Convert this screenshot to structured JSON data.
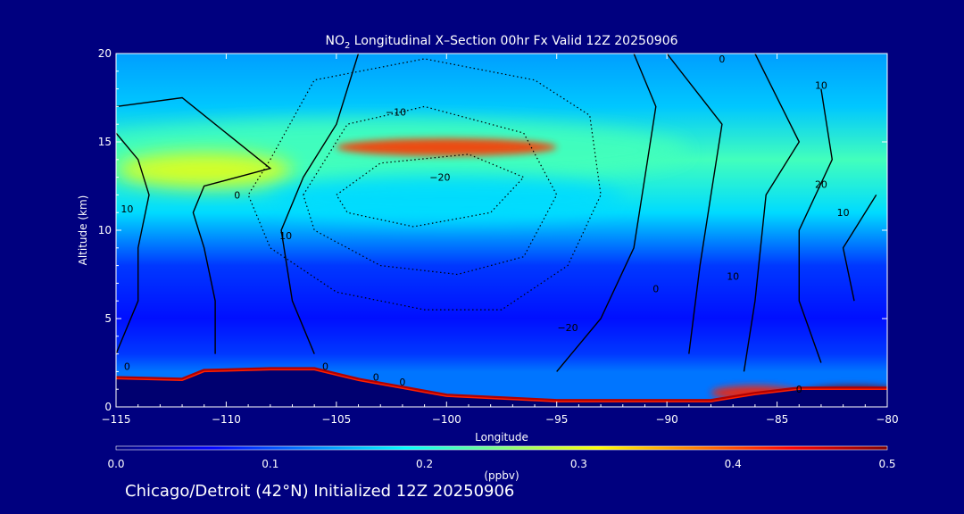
{
  "chart_data": {
    "type": "heatmap",
    "title_species": "NO",
    "title_subscript": "2",
    "title_rest": " Longitudinal X–Section 00hr  Fx Valid 12Z 20250906",
    "xlabel": "Longitude",
    "ylabel": "Altitude (km)",
    "xlim": [
      -115,
      -80
    ],
    "ylim": [
      0,
      20
    ],
    "x_ticks": [
      -115,
      -110,
      -105,
      -100,
      -95,
      -90,
      -85,
      -80
    ],
    "x_tick_labels": [
      "−115",
      "−110",
      "−105",
      "−100",
      "−95",
      "−90",
      "−85",
      "−80"
    ],
    "y_ticks": [
      0,
      5,
      10,
      15,
      20
    ],
    "y_tick_labels": [
      "0",
      "5",
      "10",
      "15",
      "20"
    ],
    "colorbar": {
      "min": 0.0,
      "max": 0.5,
      "unit_label": "(ppbv)",
      "ticks": [
        0.0,
        0.1,
        0.2,
        0.3,
        0.4,
        0.5
      ],
      "tick_labels": [
        "0.0",
        "0.1",
        "0.2",
        "0.3",
        "0.4",
        "0.5"
      ],
      "colors": [
        "#00007f",
        "#0000ff",
        "#007fff",
        "#00ffff",
        "#7fff7f",
        "#ffff00",
        "#ff7f00",
        "#ff0000",
        "#7f0000"
      ]
    },
    "background_field": [
      {
        "altitude": 20,
        "value": 0.14
      },
      {
        "altitude": 17,
        "value": 0.16
      },
      {
        "altitude": 14,
        "value": 0.22
      },
      {
        "altitude": 11,
        "value": 0.17
      },
      {
        "altitude": 8,
        "value": 0.09
      },
      {
        "altitude": 5,
        "value": 0.07
      },
      {
        "altitude": 3,
        "value": 0.09
      },
      {
        "altitude": 2,
        "value": 0.12
      }
    ],
    "features": [
      {
        "name": "upper-band",
        "center": [
          -103,
          14.5
        ],
        "spread": [
          14,
          1.8
        ],
        "value": 0.22
      },
      {
        "name": "west-max",
        "center": [
          -111,
          13.4
        ],
        "spread": [
          4,
          1.0
        ],
        "value": 0.3
      },
      {
        "name": "core-max",
        "center": [
          -100,
          14.7
        ],
        "spread": [
          5,
          0.5
        ],
        "value": 0.41
      },
      {
        "name": "mid-band",
        "center": [
          -100,
          11.8
        ],
        "spread": [
          8,
          1.3
        ],
        "value": 0.17
      },
      {
        "name": "east-surface-max",
        "center": [
          -81.5,
          0.7
        ],
        "spread": [
          2.5,
          0.5
        ],
        "value": 0.5
      },
      {
        "name": "east-surface-2",
        "center": [
          -86,
          0.8
        ],
        "spread": [
          2,
          0.4
        ],
        "value": 0.42
      }
    ],
    "terrain": [
      {
        "lon": -115,
        "alt": 1.6
      },
      {
        "lon": -112,
        "alt": 1.5
      },
      {
        "lon": -111,
        "alt": 2.0
      },
      {
        "lon": -108,
        "alt": 2.1
      },
      {
        "lon": -106,
        "alt": 2.1
      },
      {
        "lon": -104,
        "alt": 1.5
      },
      {
        "lon": -100,
        "alt": 0.6
      },
      {
        "lon": -95,
        "alt": 0.3
      },
      {
        "lon": -88,
        "alt": 0.3
      },
      {
        "lon": -86,
        "alt": 0.7
      },
      {
        "lon": -84,
        "alt": 1.0
      },
      {
        "lon": -82,
        "alt": 1.0
      },
      {
        "lon": -80,
        "alt": 1.0
      }
    ],
    "contours": [
      {
        "style": "solid",
        "points": [
          [
            -115,
            17
          ],
          [
            -112,
            17.5
          ],
          [
            -108,
            13.5
          ],
          [
            -111,
            12.5
          ],
          [
            -111.5,
            11
          ],
          [
            -111,
            9
          ],
          [
            -110.5,
            6
          ],
          [
            -110.5,
            3
          ]
        ]
      },
      {
        "style": "solid",
        "points": [
          [
            -115,
            15.5
          ],
          [
            -114,
            14
          ],
          [
            -113.5,
            12
          ],
          [
            -114,
            9
          ],
          [
            -114,
            6
          ],
          [
            -115,
            3
          ]
        ]
      },
      {
        "style": "solid",
        "points": [
          [
            -106,
            3
          ],
          [
            -107,
            6
          ],
          [
            -107.5,
            10
          ],
          [
            -106.5,
            13
          ],
          [
            -105,
            16
          ],
          [
            -104,
            20
          ]
        ]
      },
      {
        "style": "solid",
        "points": [
          [
            -95,
            2
          ],
          [
            -93,
            5
          ],
          [
            -91.5,
            9
          ],
          [
            -91,
            13
          ],
          [
            -90.5,
            17
          ],
          [
            -91.5,
            20
          ]
        ]
      },
      {
        "style": "solid",
        "points": [
          [
            -90,
            20
          ],
          [
            -87.5,
            16
          ],
          [
            -88,
            12
          ],
          [
            -88.5,
            8
          ],
          [
            -89,
            3
          ]
        ]
      },
      {
        "style": "solid",
        "points": [
          [
            -86,
            20
          ],
          [
            -84,
            15
          ],
          [
            -85.5,
            12
          ],
          [
            -86,
            6
          ],
          [
            -86.5,
            2
          ]
        ]
      },
      {
        "style": "solid",
        "points": [
          [
            -83,
            18
          ],
          [
            -82.5,
            14
          ],
          [
            -84,
            10
          ],
          [
            -84,
            6
          ],
          [
            -83,
            2.5
          ]
        ]
      },
      {
        "style": "solid",
        "points": [
          [
            -80.5,
            12
          ],
          [
            -82,
            9
          ],
          [
            -81.5,
            6
          ]
        ]
      },
      {
        "style": "dotted",
        "points": [
          [
            -108,
            14
          ],
          [
            -106,
            18.5
          ],
          [
            -101,
            19.7
          ],
          [
            -96,
            18.5
          ],
          [
            -93.5,
            16.5
          ],
          [
            -93,
            12
          ],
          [
            -94.5,
            8
          ],
          [
            -97.5,
            5.5
          ],
          [
            -101,
            5.5
          ],
          [
            -105,
            6.5
          ],
          [
            -108,
            9
          ],
          [
            -109,
            12
          ],
          [
            -108,
            14
          ]
        ]
      },
      {
        "style": "dotted",
        "points": [
          [
            -106.5,
            12
          ],
          [
            -104.5,
            16
          ],
          [
            -101,
            17
          ],
          [
            -96.5,
            15.5
          ],
          [
            -95,
            12
          ],
          [
            -96.5,
            8.5
          ],
          [
            -99.5,
            7.5
          ],
          [
            -103,
            8
          ],
          [
            -106,
            10
          ],
          [
            -106.5,
            12
          ]
        ]
      },
      {
        "style": "dotted",
        "points": [
          [
            -105,
            12
          ],
          [
            -103,
            13.8
          ],
          [
            -99,
            14.3
          ],
          [
            -96.5,
            13
          ],
          [
            -98,
            11
          ],
          [
            -101.5,
            10.2
          ],
          [
            -104.5,
            11
          ],
          [
            -105,
            12
          ]
        ]
      }
    ],
    "contour_labels": [
      {
        "text": "0",
        "lon": -109.5,
        "alt": 11.8
      },
      {
        "text": "10",
        "lon": -114.5,
        "alt": 11.0
      },
      {
        "text": "0",
        "lon": -114.5,
        "alt": 2.1
      },
      {
        "text": "10",
        "lon": -107.3,
        "alt": 9.5
      },
      {
        "text": "0",
        "lon": -105.5,
        "alt": 2.1
      },
      {
        "text": "0",
        "lon": -103.2,
        "alt": 1.5
      },
      {
        "text": "0",
        "lon": -102,
        "alt": 1.2
      },
      {
        "text": "−10",
        "lon": -102.3,
        "alt": 16.5
      },
      {
        "text": "−20",
        "lon": -100.3,
        "alt": 12.8
      },
      {
        "text": "−20",
        "lon": -94.5,
        "alt": 4.3
      },
      {
        "text": "0",
        "lon": -90.5,
        "alt": 6.5
      },
      {
        "text": "0",
        "lon": -87.5,
        "alt": 19.5
      },
      {
        "text": "10",
        "lon": -83,
        "alt": 18
      },
      {
        "text": "20",
        "lon": -83,
        "alt": 12.4
      },
      {
        "text": "10",
        "lon": -82,
        "alt": 10.8
      },
      {
        "text": "10",
        "lon": -87,
        "alt": 7.2
      },
      {
        "text": "0",
        "lon": -84,
        "alt": 0.8
      }
    ]
  },
  "footer_text": "Chicago/Detroit (42°N) Initialized 12Z 20250906"
}
